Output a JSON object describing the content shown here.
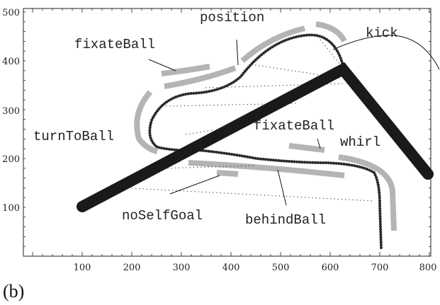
{
  "axes": {
    "x_ticks": [
      "100",
      "200",
      "300",
      "400",
      "500",
      "600",
      "700",
      "800"
    ],
    "y_ticks": [
      "100",
      "200",
      "300",
      "400",
      "500"
    ]
  },
  "labels": {
    "position": "position",
    "kick": "kick",
    "fixateBall_top": "fixateBall",
    "turnToBall": "turnToBall",
    "fixateBall_right": "fixateBall",
    "whirl": "whirl",
    "noSelfGoal": "noSelfGoal",
    "behindBall": "behindBall"
  },
  "panel_label": "(b)"
}
